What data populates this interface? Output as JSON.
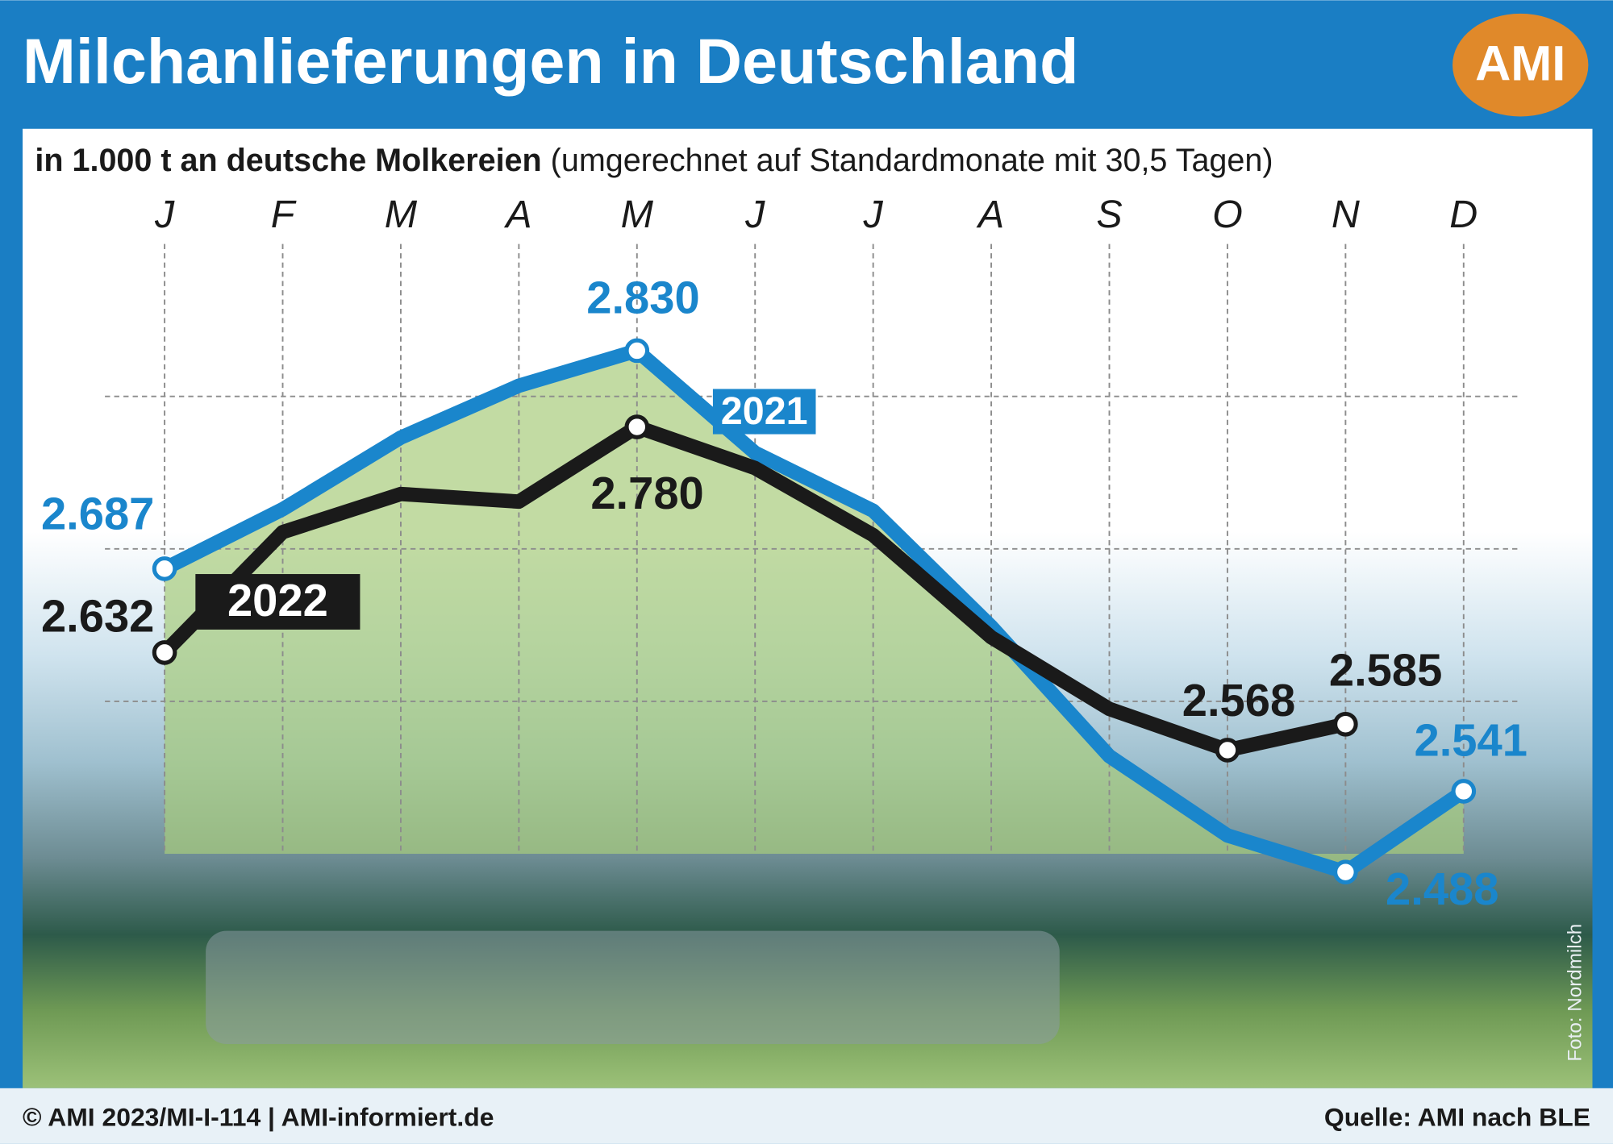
{
  "chart_data": {
    "type": "line",
    "title": "Milchanlieferungen in Deutschland",
    "subtitle_bold": "in 1.000 t an deutsche Molkereien",
    "subtitle": "(umgerechnet auf Standardmonate mit 30,5 Tagen)",
    "logo": "AMI",
    "footer_left": "© AMI 2023/MI-I-114 | AMI-informiert.de",
    "footer_right": "Quelle: AMI nach BLE",
    "photo_credit": "Foto: Nordmilch",
    "categories": [
      "J",
      "F",
      "M",
      "A",
      "M",
      "J",
      "J",
      "A",
      "S",
      "O",
      "N",
      "D"
    ],
    "series": [
      {
        "name": "2021",
        "color": "#1a86cc",
        "values": [
          2687,
          2726,
          2773,
          2807,
          2830,
          2763,
          2725,
          2649,
          2564,
          2512,
          2488,
          2541
        ],
        "value_labels": [
          "2.687",
          null,
          null,
          null,
          "2.830",
          null,
          null,
          null,
          null,
          null,
          "2.488",
          "2.541"
        ]
      },
      {
        "name": "2022",
        "color": "#1a1a1a",
        "values": [
          2632,
          2711,
          2736,
          2731,
          2780,
          2753,
          2709,
          2642,
          2595,
          2568,
          2585,
          null
        ],
        "value_labels": [
          "2.632",
          null,
          null,
          null,
          "2.780",
          null,
          null,
          null,
          null,
          "2.568",
          "2.585",
          null
        ]
      }
    ],
    "ylim": [
      2500,
      2900
    ],
    "yticks": [
      2600,
      2700,
      2800
    ],
    "grid": true
  }
}
